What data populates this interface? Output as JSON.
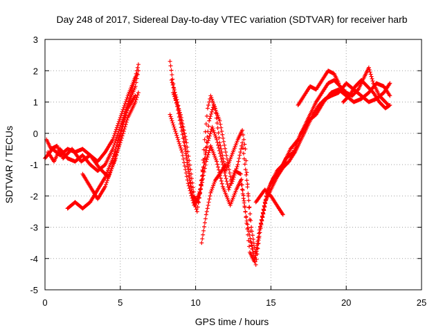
{
  "chart_data": {
    "type": "scatter",
    "title": "Day 248 of 2017, Sidereal Day-to-day VTEC variation (SDTVAR) for receiver harb",
    "xlabel": "GPS time / hours",
    "ylabel": "SDTVAR / TECUs",
    "xlim": [
      0,
      25
    ],
    "ylim": [
      -5,
      3
    ],
    "xticks": [
      0,
      5,
      10,
      15,
      20,
      25
    ],
    "yticks": [
      -5,
      -4,
      -3,
      -2,
      -1,
      0,
      1,
      2,
      3
    ],
    "xtick_labels": [
      "0",
      "5",
      "10",
      "15",
      "20",
      "25"
    ],
    "ytick_labels": [
      "-5",
      "-4",
      "-3",
      "-2",
      "-1",
      "0",
      "1",
      "2",
      "3"
    ],
    "grid": true,
    "marker": "+",
    "color": "#ff0000",
    "tracks": [
      [
        [
          0.0,
          -0.8
        ],
        [
          0.5,
          -0.5
        ],
        [
          1.0,
          -0.7
        ],
        [
          1.5,
          -0.5
        ],
        [
          2.0,
          -0.6
        ],
        [
          2.5,
          -0.5
        ],
        [
          3.0,
          -0.7
        ],
        [
          3.5,
          -0.9
        ],
        [
          4.0,
          -0.6
        ],
        [
          4.5,
          -0.2
        ],
        [
          5.0,
          0.5
        ],
        [
          5.5,
          1.2
        ],
        [
          6.0,
          1.8
        ],
        [
          6.2,
          2.2
        ]
      ],
      [
        [
          0.2,
          -0.6
        ],
        [
          0.6,
          -0.9
        ],
        [
          1.0,
          -0.5
        ],
        [
          1.5,
          -0.8
        ],
        [
          2.0,
          -0.9
        ],
        [
          2.5,
          -0.7
        ],
        [
          3.0,
          -1.0
        ],
        [
          3.5,
          -1.2
        ],
        [
          4.0,
          -1.0
        ],
        [
          4.5,
          -0.5
        ],
        [
          5.0,
          0.2
        ],
        [
          5.5,
          0.9
        ],
        [
          6.0,
          1.5
        ],
        [
          6.2,
          2.0
        ]
      ],
      [
        [
          0.1,
          -0.2
        ],
        [
          0.4,
          -0.5
        ],
        [
          0.8,
          -0.4
        ],
        [
          1.2,
          -0.8
        ],
        [
          1.8,
          -0.5
        ],
        [
          2.4,
          -0.9
        ],
        [
          3.0,
          -0.7
        ],
        [
          3.6,
          -1.1
        ],
        [
          4.2,
          -1.4
        ],
        [
          4.7,
          -0.8
        ],
        [
          5.2,
          0.3
        ],
        [
          5.7,
          1.3
        ],
        [
          6.1,
          1.9
        ]
      ],
      [
        [
          1.5,
          -2.4
        ],
        [
          2.0,
          -2.2
        ],
        [
          2.5,
          -2.4
        ],
        [
          3.0,
          -2.2
        ],
        [
          3.5,
          -1.8
        ],
        [
          4.0,
          -1.4
        ],
        [
          4.5,
          -0.8
        ],
        [
          5.0,
          0.0
        ],
        [
          5.5,
          0.8
        ],
        [
          6.0,
          1.2
        ]
      ],
      [
        [
          2.5,
          -1.3
        ],
        [
          3.0,
          -1.7
        ],
        [
          3.5,
          -2.1
        ],
        [
          4.0,
          -1.7
        ],
        [
          4.5,
          -1.0
        ],
        [
          5.0,
          -0.3
        ],
        [
          5.5,
          0.5
        ],
        [
          6.0,
          1.0
        ],
        [
          6.2,
          1.3
        ]
      ],
      [
        [
          8.3,
          2.3
        ],
        [
          8.6,
          1.3
        ],
        [
          9.0,
          0.3
        ],
        [
          9.3,
          -0.5
        ],
        [
          9.6,
          -1.5
        ],
        [
          9.9,
          -2.2
        ],
        [
          10.1,
          -2.5
        ],
        [
          10.4,
          -1.5
        ],
        [
          10.6,
          -0.2
        ],
        [
          10.8,
          0.8
        ],
        [
          11.0,
          1.2
        ],
        [
          11.3,
          0.8
        ],
        [
          11.6,
          -0.3
        ],
        [
          12.0,
          -1.2
        ],
        [
          12.4,
          -0.7
        ],
        [
          12.8,
          -0.2
        ],
        [
          13.1,
          0.1
        ],
        [
          13.3,
          -0.5
        ],
        [
          13.5,
          -2.0
        ],
        [
          13.7,
          -3.5
        ],
        [
          14.0,
          -4.2
        ],
        [
          14.3,
          -3.0
        ],
        [
          14.7,
          -2.0
        ],
        [
          15.0,
          -1.6
        ],
        [
          15.4,
          -1.2
        ],
        [
          15.8,
          -1.0
        ],
        [
          16.3,
          -0.5
        ],
        [
          16.8,
          -0.2
        ],
        [
          17.2,
          0.2
        ],
        [
          17.6,
          0.6
        ],
        [
          18.0,
          1.0
        ],
        [
          18.4,
          1.3
        ],
        [
          18.8,
          1.6
        ],
        [
          19.2,
          1.7
        ],
        [
          19.6,
          1.5
        ],
        [
          20.0,
          1.3
        ],
        [
          20.4,
          1.2
        ],
        [
          20.8,
          1.4
        ],
        [
          21.2,
          1.8
        ],
        [
          21.5,
          2.1
        ],
        [
          21.8,
          1.6
        ],
        [
          22.2,
          1.2
        ],
        [
          22.6,
          1.0
        ],
        [
          22.8,
          0.9
        ]
      ],
      [
        [
          8.4,
          1.7
        ],
        [
          8.8,
          1.0
        ],
        [
          9.2,
          0.0
        ],
        [
          9.5,
          -1.0
        ],
        [
          9.8,
          -2.0
        ],
        [
          10.2,
          -2.2
        ],
        [
          10.5,
          -1.2
        ],
        [
          10.8,
          -0.3
        ],
        [
          11.1,
          0.2
        ],
        [
          11.4,
          -0.2
        ],
        [
          11.8,
          -1.0
        ],
        [
          12.2,
          -1.8
        ],
        [
          12.6,
          -1.2
        ],
        [
          13.0,
          -1.3
        ],
        [
          13.3,
          -2.5
        ],
        [
          13.6,
          -3.8
        ],
        [
          13.9,
          -4.1
        ],
        [
          14.2,
          -3.2
        ],
        [
          14.6,
          -2.2
        ],
        [
          15.0,
          -1.8
        ],
        [
          15.4,
          -1.4
        ],
        [
          15.8,
          -1.1
        ],
        [
          16.2,
          -0.9
        ],
        [
          16.6,
          -0.6
        ],
        [
          17.0,
          -0.2
        ],
        [
          17.4,
          0.2
        ],
        [
          17.8,
          0.6
        ],
        [
          18.2,
          0.9
        ],
        [
          18.6,
          1.1
        ],
        [
          19.0,
          1.2
        ],
        [
          19.5,
          1.3
        ],
        [
          20.0,
          1.6
        ],
        [
          20.5,
          1.4
        ],
        [
          21.0,
          1.2
        ],
        [
          21.5,
          1.0
        ],
        [
          22.0,
          1.1
        ],
        [
          22.5,
          1.3
        ],
        [
          22.9,
          1.6
        ]
      ],
      [
        [
          8.5,
          1.3
        ],
        [
          9.0,
          0.6
        ],
        [
          9.4,
          -0.3
        ],
        [
          9.7,
          -1.3
        ],
        [
          10.0,
          -2.3
        ],
        [
          10.3,
          -1.8
        ],
        [
          10.6,
          -0.8
        ],
        [
          10.9,
          0.4
        ],
        [
          11.2,
          0.9
        ],
        [
          11.6,
          0.4
        ],
        [
          12.0,
          -0.6
        ],
        [
          12.4,
          -1.6
        ],
        [
          12.8,
          -1.0
        ],
        [
          13.1,
          -0.3
        ],
        [
          13.4,
          -1.5
        ],
        [
          13.7,
          -3.0
        ],
        [
          14.0,
          -3.9
        ],
        [
          14.4,
          -2.8
        ],
        [
          14.8,
          -1.8
        ],
        [
          15.2,
          -1.4
        ],
        [
          15.6,
          -1.2
        ],
        [
          16.0,
          -0.8
        ],
        [
          16.5,
          -0.6
        ],
        [
          17.0,
          0.0
        ],
        [
          17.5,
          0.4
        ],
        [
          18.0,
          0.6
        ],
        [
          18.5,
          1.0
        ],
        [
          19.0,
          1.3
        ],
        [
          19.5,
          1.4
        ],
        [
          20.0,
          1.2
        ],
        [
          20.5,
          1.0
        ],
        [
          21.0,
          1.1
        ],
        [
          21.5,
          1.3
        ],
        [
          22.0,
          1.6
        ],
        [
          22.5,
          1.5
        ],
        [
          22.9,
          1.2
        ]
      ],
      [
        [
          8.3,
          0.6
        ],
        [
          8.7,
          0.0
        ],
        [
          9.1,
          -0.6
        ],
        [
          9.5,
          -1.6
        ],
        [
          9.9,
          -2.3
        ],
        [
          10.3,
          -1.9
        ],
        [
          10.7,
          -0.9
        ],
        [
          11.0,
          -0.4
        ],
        [
          11.4,
          -0.9
        ],
        [
          11.8,
          -1.7
        ],
        [
          12.3,
          -2.3
        ],
        [
          12.7,
          -1.8
        ],
        [
          13.0,
          -1.5
        ],
        [
          13.4,
          -2.8
        ],
        [
          13.8,
          -3.8
        ]
      ],
      [
        [
          10.4,
          -3.5
        ],
        [
          10.7,
          -2.6
        ],
        [
          11.0,
          -1.9
        ],
        [
          11.3,
          -1.5
        ],
        [
          11.6,
          -1.3
        ],
        [
          12.0,
          -1.0
        ]
      ],
      [
        [
          14.0,
          -2.2
        ],
        [
          14.3,
          -2.0
        ],
        [
          14.6,
          -1.8
        ],
        [
          15.0,
          -2.0
        ],
        [
          15.4,
          -2.3
        ],
        [
          15.8,
          -2.6
        ]
      ],
      [
        [
          16.8,
          0.9
        ],
        [
          17.2,
          1.2
        ],
        [
          17.6,
          1.5
        ],
        [
          18.0,
          1.4
        ],
        [
          18.4,
          1.7
        ],
        [
          18.8,
          2.0
        ],
        [
          19.2,
          1.9
        ],
        [
          19.5,
          1.6
        ]
      ],
      [
        [
          19.8,
          1.0
        ],
        [
          20.2,
          1.2
        ],
        [
          20.6,
          1.5
        ],
        [
          21.0,
          1.7
        ],
        [
          21.4,
          1.5
        ],
        [
          21.8,
          1.3
        ],
        [
          22.2,
          1.0
        ],
        [
          22.6,
          0.8
        ],
        [
          22.9,
          0.9
        ]
      ]
    ]
  }
}
